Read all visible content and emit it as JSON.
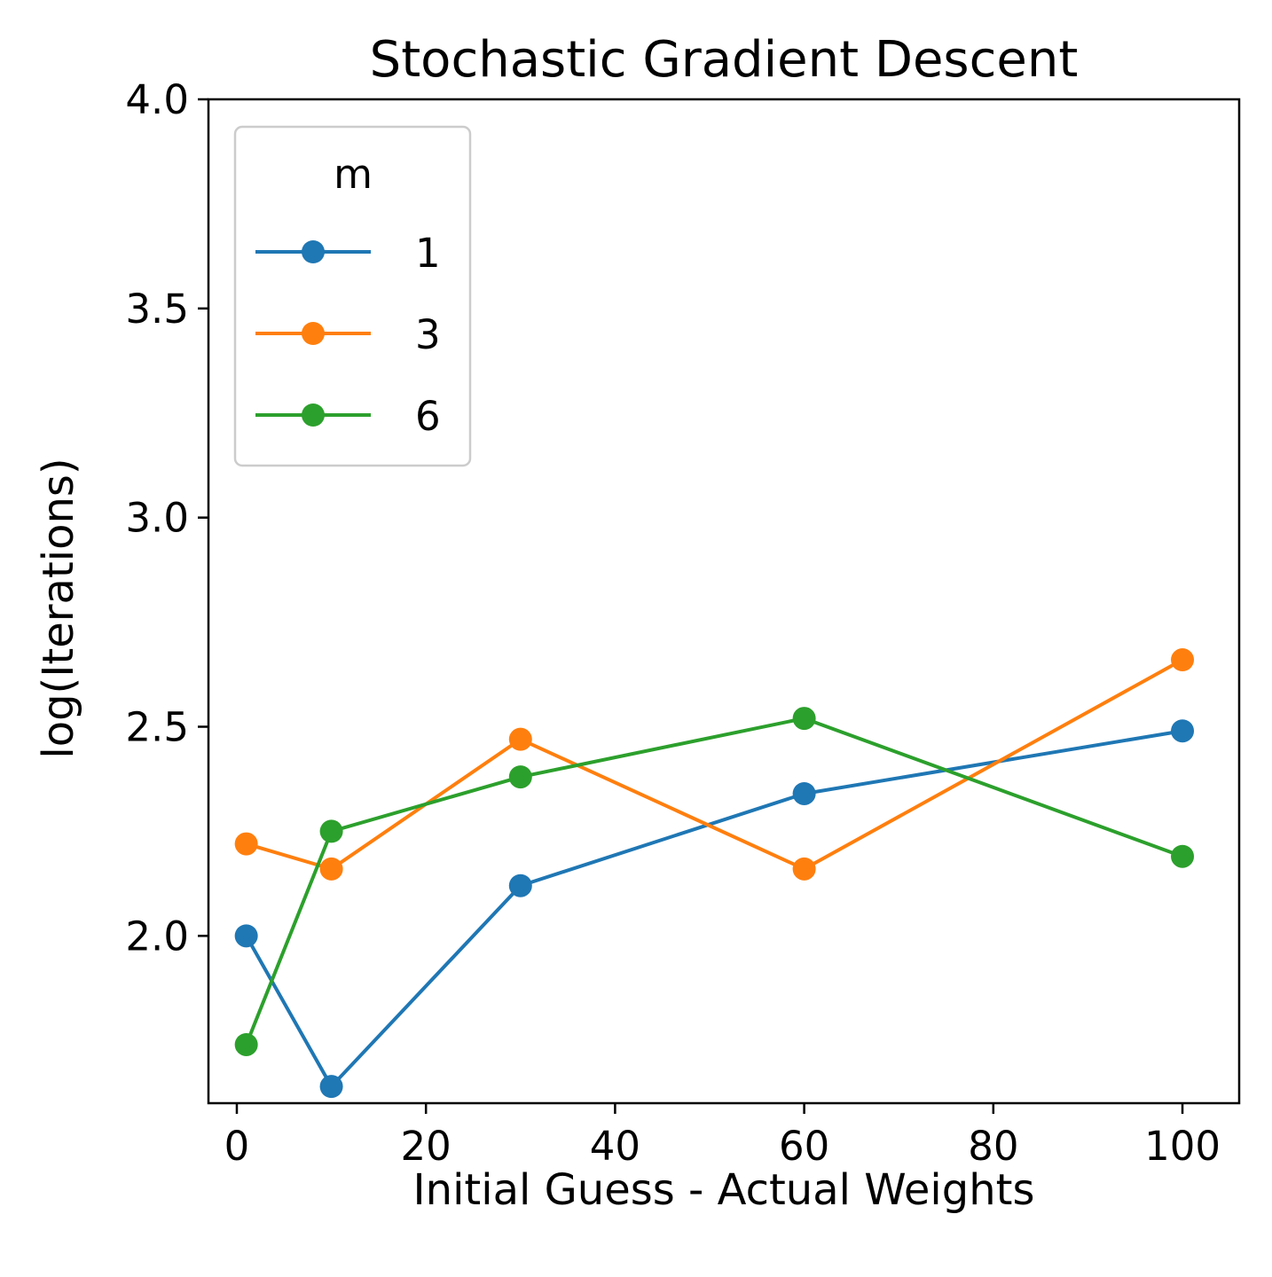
{
  "chart_data": {
    "type": "line",
    "title": "Stochastic Gradient Descent",
    "xlabel": "Initial Guess - Actual Weights",
    "ylabel": "log(Iterations)",
    "xlim": [
      -3,
      106
    ],
    "ylim": [
      1.6,
      4.0
    ],
    "xticks": [
      0,
      20,
      40,
      60,
      80,
      100
    ],
    "yticks": [
      2.0,
      2.5,
      3.0,
      3.5,
      4.0
    ],
    "x": [
      1,
      10,
      30,
      60,
      100
    ],
    "grid": false,
    "legend": {
      "title": "m",
      "placement": "top-left"
    },
    "series": [
      {
        "name": "1",
        "color": "#1f77b4",
        "values": [
          2.0,
          1.64,
          2.12,
          2.34,
          2.49
        ]
      },
      {
        "name": "3",
        "color": "#ff7f0e",
        "values": [
          2.22,
          2.16,
          2.47,
          2.16,
          2.66
        ]
      },
      {
        "name": "6",
        "color": "#2ca02c",
        "values": [
          1.74,
          2.25,
          2.38,
          2.52,
          2.19
        ]
      }
    ]
  }
}
